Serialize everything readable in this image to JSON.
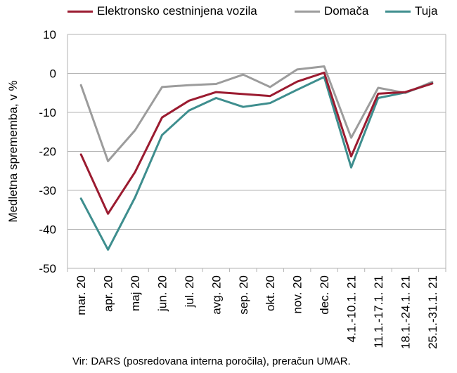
{
  "chart_data": {
    "type": "line",
    "title": "",
    "xlabel": "",
    "ylabel": "Medletna sprememba, v %",
    "ylim": [
      -50,
      10
    ],
    "yticks": [
      10,
      0,
      -10,
      -20,
      -30,
      -40,
      -50
    ],
    "grid": "horizontal",
    "legend_position": "top",
    "categories": [
      "mar. 20",
      "apr. 20",
      "maj 20",
      "jun. 20",
      "jul. 20",
      "avg. 20",
      "sep. 20",
      "okt. 20",
      "nov. 20",
      "dec. 20",
      "4.1.-10.1. 21",
      "11.1.-17.1. 21",
      "18.1.-24.1. 21",
      "25.1.-31.1. 21"
    ],
    "series": [
      {
        "name": "Elektronsko cestninjena vozila",
        "color": "#9b1b30",
        "values": [
          -20.8,
          -36.0,
          -25.3,
          -11.3,
          -7.0,
          -4.8,
          -5.3,
          -5.8,
          -2.1,
          0.2,
          -21.3,
          -5.2,
          -4.8,
          -2.6
        ]
      },
      {
        "name": "Domača",
        "color": "#9c9c9c",
        "values": [
          -3.0,
          -22.5,
          -14.6,
          -3.5,
          -3.0,
          -2.7,
          -0.3,
          -3.5,
          1.0,
          1.8,
          -16.5,
          -3.7,
          -5.0,
          -2.2
        ]
      },
      {
        "name": "Tuja",
        "color": "#3e8e8e",
        "values": [
          -32.1,
          -45.2,
          -31.8,
          -15.8,
          -9.5,
          -6.3,
          -8.6,
          -7.6,
          -4.2,
          -0.9,
          -24.1,
          -6.3,
          -4.9,
          -2.5
        ]
      }
    ]
  },
  "source_note": "Vir: DARS (posredovana interna poročila), preračun UMAR."
}
